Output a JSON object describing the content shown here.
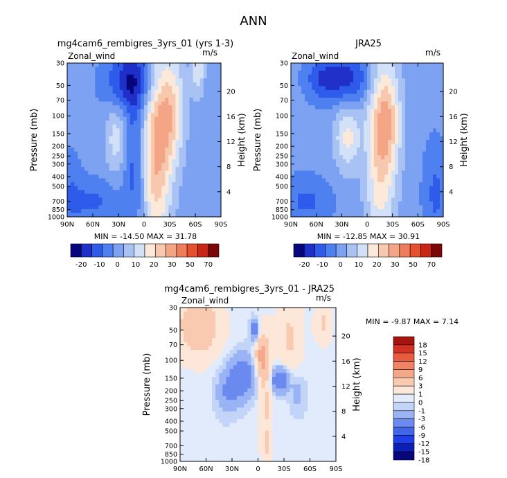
{
  "page": {
    "title": "ANN"
  },
  "palettes": {
    "main": [
      "#08067d",
      "#1f2fc7",
      "#2f5bea",
      "#4f80f0",
      "#7da2f2",
      "#a8c2f4",
      "#d2e1f8",
      "#fde9da",
      "#f8c8ae",
      "#f4a586",
      "#ef7d5c",
      "#e5512f",
      "#c82716",
      "#7b0808"
    ],
    "diff": [
      "#08067d",
      "#0b1fb7",
      "#1f40e8",
      "#4266ea",
      "#6a8af0",
      "#9ab3f4",
      "#c2d4f8",
      "#e1ebfb",
      "#fde7d8",
      "#f9cab0",
      "#f4a88a",
      "#ef8464",
      "#e85b3c",
      "#d23222",
      "#a5140e"
    ]
  },
  "chart_data": [
    {
      "id": "model",
      "type": "heatmap",
      "title": "mg4cam6_rembigres_3yrs_01 (yrs 1-3)",
      "variable_label": "Zonal_wind",
      "units_label": "m/s",
      "ylabel": "Pressure (mb)",
      "ylabel_right": "Height (km)",
      "x_ticks": [
        "90N",
        "60N",
        "30N",
        "0",
        "30S",
        "60S",
        "90S"
      ],
      "y_ticks": [
        "30",
        "50",
        "70",
        "100",
        "150",
        "200",
        "250",
        "300",
        "400",
        "500",
        "700",
        "850",
        "1000"
      ],
      "height_ticks": [
        "4",
        "8",
        "12",
        "16",
        "20"
      ],
      "xlim": [
        -90,
        90
      ],
      "ylim": [
        1000,
        30
      ],
      "minmax_text": "MIN = -14.50   MAX =  31.78",
      "min": -14.5,
      "max": 31.78,
      "colorbar_levels": [
        "-20",
        "-10",
        "0",
        "10",
        "20",
        "30",
        "50",
        "70"
      ]
    },
    {
      "id": "obs",
      "type": "heatmap",
      "title": "JRA25",
      "variable_label": "Zonal_wind",
      "units_label": "m/s",
      "ylabel": "Pressure (mb)",
      "ylabel_right": "Height (km)",
      "x_ticks": [
        "90N",
        "60N",
        "30N",
        "0",
        "30S",
        "60S",
        "90S"
      ],
      "y_ticks": [
        "30",
        "50",
        "70",
        "100",
        "150",
        "200",
        "250",
        "300",
        "400",
        "500",
        "700",
        "850",
        "1000"
      ],
      "height_ticks": [
        "4",
        "8",
        "12",
        "16",
        "20"
      ],
      "xlim": [
        -90,
        90
      ],
      "ylim": [
        1000,
        30
      ],
      "minmax_text": "MIN = -12.85   MAX =  30.91",
      "min": -12.85,
      "max": 30.91,
      "colorbar_levels": [
        "-20",
        "-10",
        "0",
        "10",
        "20",
        "30",
        "50",
        "70"
      ]
    },
    {
      "id": "diff",
      "type": "heatmap",
      "title": "mg4cam6_rembigres_3yrs_01 - JRA25",
      "variable_label": "Zonal_wind",
      "units_label": "m/s",
      "ylabel": "Pressure (mb)",
      "ylabel_right": "Height (km)",
      "x_ticks": [
        "90N",
        "60N",
        "30N",
        "0",
        "30S",
        "60S",
        "90S"
      ],
      "y_ticks": [
        "30",
        "50",
        "70",
        "100",
        "150",
        "200",
        "250",
        "300",
        "400",
        "500",
        "700",
        "850",
        "1000"
      ],
      "height_ticks": [
        "4",
        "8",
        "12",
        "16",
        "20"
      ],
      "xlim": [
        -90,
        90
      ],
      "ylim": [
        1000,
        30
      ],
      "minmax_text": "MIN =   -9.87   MAX =    7.14",
      "min": -9.87,
      "max": 7.14,
      "colorbar_levels": [
        "18",
        "15",
        "12",
        "9",
        "6",
        "3",
        "1",
        "0",
        "-1",
        "-3",
        "-6",
        "-9",
        "-12",
        "-15",
        "-18"
      ]
    }
  ]
}
